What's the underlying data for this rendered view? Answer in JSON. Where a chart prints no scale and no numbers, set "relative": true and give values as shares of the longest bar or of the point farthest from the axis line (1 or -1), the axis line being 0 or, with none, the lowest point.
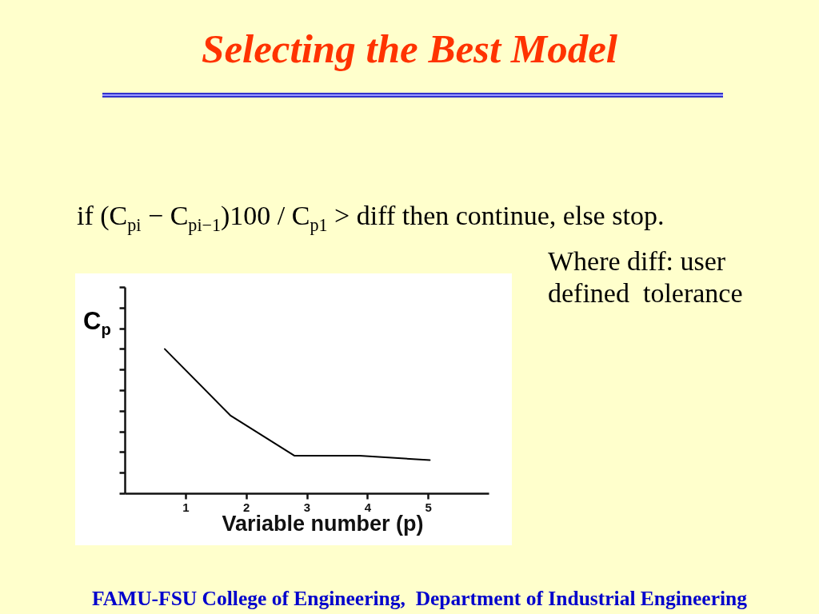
{
  "chart_data": {
    "type": "line",
    "title": "Selecting the Best Model",
    "xlabel": "Variable number (p)",
    "ylabel": "C$_{p}$",
    "x": [
      0.66,
      1.74,
      2.8,
      3.87,
      5.03
    ],
    "values": [
      1,
      0.54,
      0.26,
      0.26,
      0.23
    ],
    "color": "#000000",
    "relative": true,
    "xlim": [
      0,
      6
    ],
    "xticks": [
      1,
      2,
      3,
      4,
      5
    ],
    "annotations": [
      "if (C$_{pi}$ − C$_{pi−1}$)100 / C$_{p1}$ > diff then continue, else stop.",
      "Where diff: user defined  tolerance",
      "FAMU-FSU College of Engineering,  Department of Industrial Engineering"
    ]
  }
}
